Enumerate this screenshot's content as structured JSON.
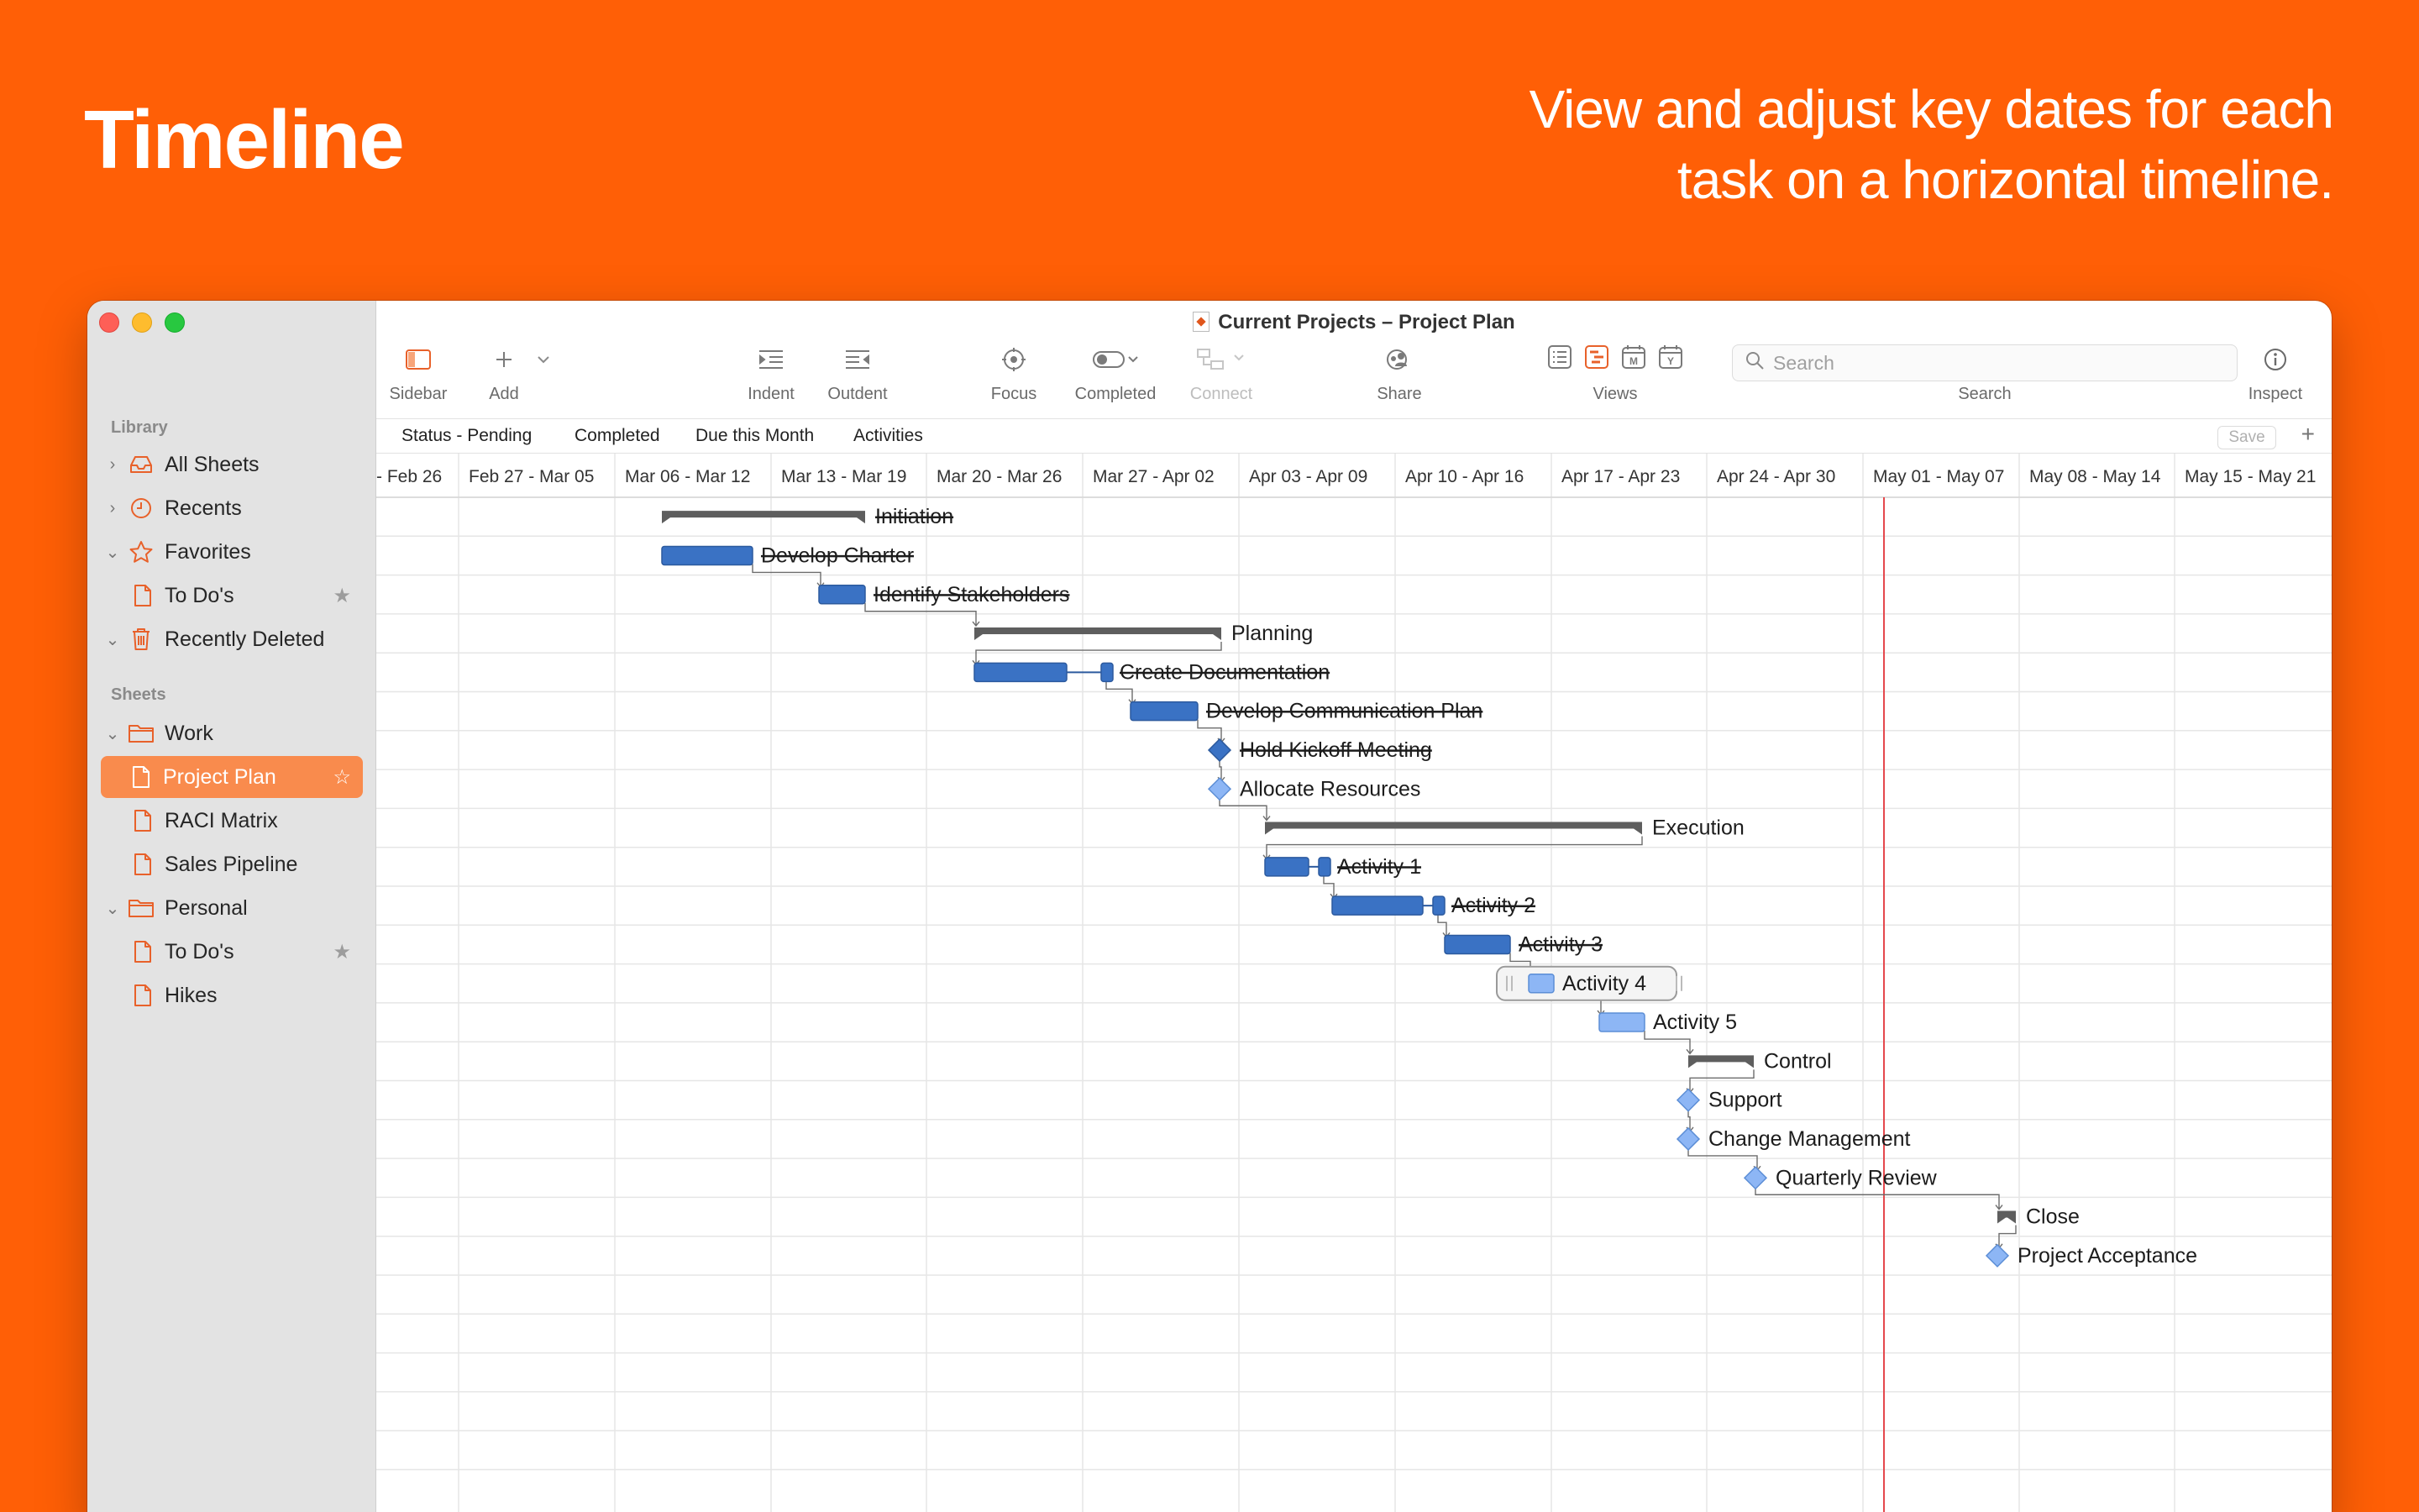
{
  "hero": {
    "title": "Timeline",
    "subtitle_line1": "View and adjust key dates for each",
    "subtitle_line2": "task on a horizontal timeline."
  },
  "window": {
    "title": "Current Projects – Project Plan"
  },
  "sidebar": {
    "library_label": "Library",
    "sheets_label": "Sheets",
    "items": [
      {
        "label": "All Sheets",
        "icon": "tray-icon",
        "chevron": "right"
      },
      {
        "label": "Recents",
        "icon": "clock-icon",
        "chevron": "right"
      },
      {
        "label": "Favorites",
        "icon": "star-icon",
        "chevron": "down"
      },
      {
        "label": "To Do's",
        "icon": "document-icon",
        "favorite": true
      },
      {
        "label": "Recently Deleted",
        "icon": "trash-icon",
        "chevron": "down"
      }
    ],
    "sheets": [
      {
        "label": "Work",
        "icon": "folder-icon",
        "chevron": "down"
      },
      {
        "label": "Project Plan",
        "icon": "document-icon",
        "selected": true
      },
      {
        "label": "RACI Matrix",
        "icon": "document-icon"
      },
      {
        "label": "Sales Pipeline",
        "icon": "document-icon"
      },
      {
        "label": "Personal",
        "icon": "folder-icon",
        "chevron": "down"
      },
      {
        "label": "To Do's",
        "icon": "document-icon",
        "favorite": true
      },
      {
        "label": "Hikes",
        "icon": "document-icon"
      }
    ]
  },
  "toolbar": {
    "sidebar": "Sidebar",
    "add": "Add",
    "indent": "Indent",
    "outdent": "Outdent",
    "focus": "Focus",
    "completed": "Completed",
    "connect": "Connect",
    "share": "Share",
    "views": "Views",
    "search": "Search",
    "search_placeholder": "Search",
    "inspect": "Inspect"
  },
  "filters": {
    "items": [
      "Status - Pending",
      "Completed",
      "Due this Month",
      "Activities"
    ],
    "save": "Save"
  },
  "timeline": {
    "weeks": [
      "- Feb 26",
      "Feb 27 - Mar 05",
      "Mar 06 - Mar 12",
      "Mar 13 - Mar 19",
      "Mar 20 - Mar 26",
      "Mar 27 - Apr 02",
      "Apr 03 - Apr 09",
      "Apr 10 - Apr 16",
      "Apr 17 - Apr 23",
      "Apr 24 - Apr 30",
      "May 01 - May 07",
      "May 08 - May 14",
      "May 15 - May 21"
    ],
    "tasks": [
      {
        "label": "Initiation",
        "type": "group",
        "done": true
      },
      {
        "label": "Develop Charter",
        "type": "task",
        "done": true
      },
      {
        "label": "Identify Stakeholders",
        "type": "task",
        "done": true
      },
      {
        "label": "Planning",
        "type": "group",
        "done": false
      },
      {
        "label": "Create Documentation",
        "type": "task",
        "done": true
      },
      {
        "label": "Develop Communication Plan",
        "type": "task",
        "done": true
      },
      {
        "label": "Hold Kickoff Meeting",
        "type": "milestone",
        "done": true
      },
      {
        "label": "Allocate Resources",
        "type": "milestone",
        "done": false
      },
      {
        "label": "Execution",
        "type": "group",
        "done": false
      },
      {
        "label": "Activity 1",
        "type": "task",
        "done": true
      },
      {
        "label": "Activity 2",
        "type": "task",
        "done": true
      },
      {
        "label": "Activity 3",
        "type": "task",
        "done": true
      },
      {
        "label": "Activity 4",
        "type": "task",
        "done": false,
        "selected": true
      },
      {
        "label": "Activity 5",
        "type": "task",
        "done": false
      },
      {
        "label": "Control",
        "type": "group",
        "done": false
      },
      {
        "label": "Support",
        "type": "milestone",
        "done": false
      },
      {
        "label": "Change Management",
        "type": "milestone",
        "done": false
      },
      {
        "label": "Quarterly Review",
        "type": "milestone",
        "done": false
      },
      {
        "label": "Close",
        "type": "group",
        "done": false
      },
      {
        "label": "Project Acceptance",
        "type": "milestone",
        "done": false
      }
    ]
  },
  "colors": {
    "accent": "#FF5F06",
    "bar_done": "#3A72C4",
    "bar_pending": "#8DB6F5",
    "group_bar": "#5E5E5E",
    "today_line": "#E5484D"
  }
}
